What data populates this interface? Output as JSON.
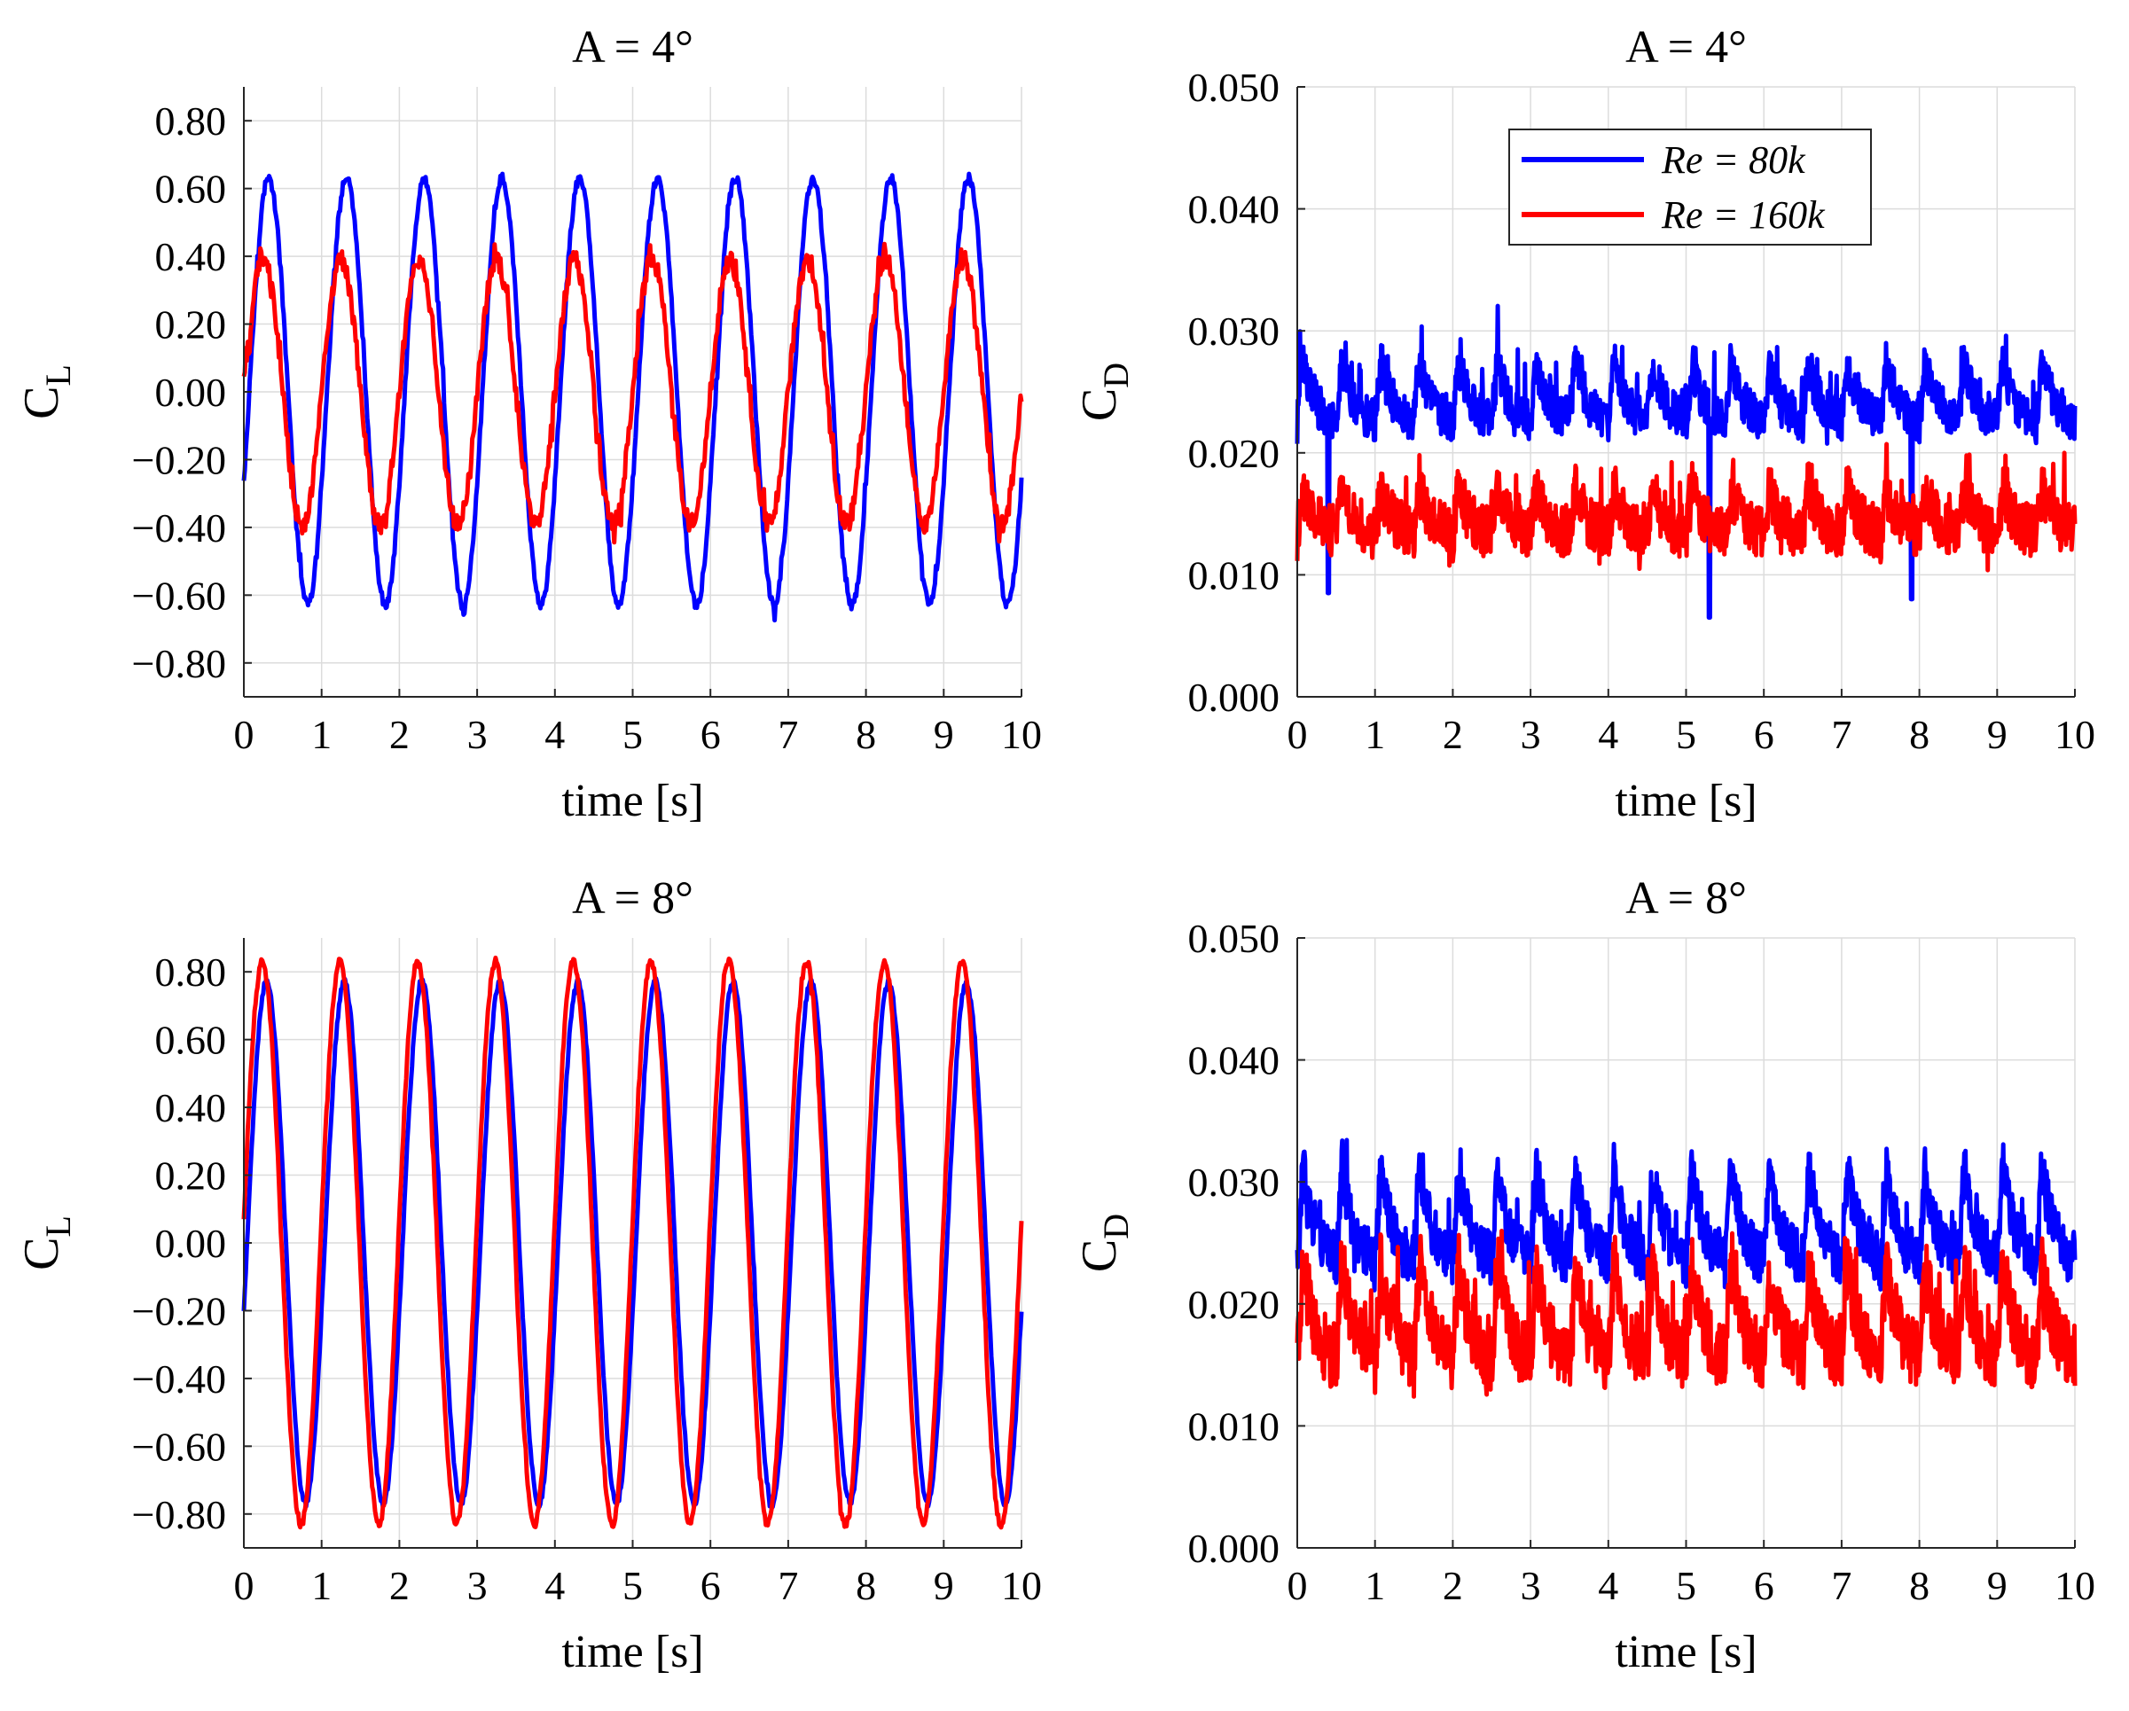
{
  "colors": {
    "series_1": "#0000ff",
    "series_2": "#ff0000",
    "grid": "#dcdcdc",
    "axes": "#262626"
  },
  "legend": {
    "entries": [
      "Re = 80k",
      "Re = 160k"
    ],
    "placement": "top-center of top-right panel"
  },
  "chart_data": [
    {
      "type": "line",
      "panel": "top-left",
      "title": "A = 4°",
      "xlabel": "time [s]",
      "ylabel_main": "C",
      "ylabel_sub": "L",
      "xlim": [
        0,
        10
      ],
      "ylim": [
        -0.9,
        0.9
      ],
      "xticks": [
        0,
        1,
        2,
        3,
        4,
        5,
        6,
        7,
        8,
        9,
        10
      ],
      "xtick_labels": [
        "0",
        "1",
        "2",
        "3",
        "4",
        "5",
        "6",
        "7",
        "8",
        "9",
        "10"
      ],
      "yticks": [
        -0.8,
        -0.6,
        -0.4,
        -0.2,
        0,
        0.2,
        0.4,
        0.6,
        0.8
      ],
      "ytick_labels": [
        "−0.80",
        "−0.60",
        "−0.40",
        "−0.20",
        "0.00",
        "0.20",
        "0.40",
        "0.60",
        "0.80"
      ],
      "grid": true,
      "series": [
        {
          "name": "Re = 80k",
          "model": "sine",
          "frequency_hz": 1,
          "mean": 0,
          "amplitude": 0.63,
          "phase_deg": -25,
          "noise": 0.015,
          "samples": 800
        },
        {
          "name": "Re = 160k",
          "model": "sine",
          "frequency_hz": 1,
          "mean": 0,
          "amplitude": 0.39,
          "phase_deg": 0,
          "noise": 0.03,
          "samples": 800
        }
      ]
    },
    {
      "type": "line",
      "panel": "top-right",
      "title": "A = 4°",
      "xlabel": "time [s]",
      "ylabel_main": "C",
      "ylabel_sub": "D",
      "xlim": [
        0,
        10
      ],
      "ylim": [
        0,
        0.05
      ],
      "xticks": [
        0,
        1,
        2,
        3,
        4,
        5,
        6,
        7,
        8,
        9,
        10
      ],
      "xtick_labels": [
        "0",
        "1",
        "2",
        "3",
        "4",
        "5",
        "6",
        "7",
        "8",
        "9",
        "10"
      ],
      "yticks": [
        0,
        0.01,
        0.02,
        0.03,
        0.04,
        0.05
      ],
      "ytick_labels": [
        "0.000",
        "0.010",
        "0.020",
        "0.030",
        "0.040",
        "0.050"
      ],
      "grid": true,
      "series": [
        {
          "name": "Re = 80k",
          "model": "spiky",
          "frequency_hz": 2,
          "mean": 0.0245,
          "amplitude": 0.0045,
          "noise": 0.0018,
          "samples": 1400,
          "dips": [
            [
              0.4,
              0.0085
            ],
            [
              5.3,
              0.0065
            ],
            [
              7.9,
              0.008
            ]
          ]
        },
        {
          "name": "Re = 160k",
          "model": "spiky",
          "frequency_hz": 2,
          "mean": 0.0148,
          "amplitude": 0.0035,
          "noise": 0.0022,
          "samples": 1400,
          "dips": []
        }
      ]
    },
    {
      "type": "line",
      "panel": "bottom-left",
      "title": "A = 8°",
      "xlabel": "time [s]",
      "ylabel_main": "C",
      "ylabel_sub": "L",
      "xlim": [
        0,
        10
      ],
      "ylim": [
        -0.9,
        0.9
      ],
      "xticks": [
        0,
        1,
        2,
        3,
        4,
        5,
        6,
        7,
        8,
        9,
        10
      ],
      "xtick_labels": [
        "0",
        "1",
        "2",
        "3",
        "4",
        "5",
        "6",
        "7",
        "8",
        "9",
        "10"
      ],
      "yticks": [
        -0.8,
        -0.6,
        -0.4,
        -0.2,
        0,
        0.2,
        0.4,
        0.6,
        0.8
      ],
      "ytick_labels": [
        "−0.80",
        "−0.60",
        "−0.40",
        "−0.20",
        "0.00",
        "0.20",
        "0.40",
        "0.60",
        "0.80"
      ],
      "grid": true,
      "series": [
        {
          "name": "Re = 80k",
          "model": "sine",
          "frequency_hz": 1,
          "mean": 0,
          "amplitude": 0.77,
          "phase_deg": -15,
          "noise": 0.01,
          "samples": 800
        },
        {
          "name": "Re = 160k",
          "model": "sine",
          "frequency_hz": 1,
          "mean": 0,
          "amplitude": 0.83,
          "phase_deg": 5,
          "noise": 0.012,
          "samples": 800
        }
      ]
    },
    {
      "type": "line",
      "panel": "bottom-right",
      "title": "A = 8°",
      "xlabel": "time [s]",
      "ylabel_main": "C",
      "ylabel_sub": "D",
      "xlim": [
        0,
        10
      ],
      "ylim": [
        0,
        0.05
      ],
      "xticks": [
        0,
        1,
        2,
        3,
        4,
        5,
        6,
        7,
        8,
        9,
        10
      ],
      "xtick_labels": [
        "0",
        "1",
        "2",
        "3",
        "4",
        "5",
        "6",
        "7",
        "8",
        "9",
        "10"
      ],
      "yticks": [
        0,
        0.01,
        0.02,
        0.03,
        0.04,
        0.05
      ],
      "ytick_labels": [
        "0.000",
        "0.010",
        "0.020",
        "0.030",
        "0.040",
        "0.050"
      ],
      "grid": true,
      "series": [
        {
          "name": "Re = 80k",
          "model": "spiky",
          "frequency_hz": 2,
          "mean": 0.0265,
          "amplitude": 0.0075,
          "noise": 0.0022,
          "samples": 1400,
          "dips": []
        },
        {
          "name": "Re = 160k",
          "model": "spiky",
          "frequency_hz": 2,
          "mean": 0.0185,
          "amplitude": 0.0075,
          "noise": 0.0028,
          "samples": 1400,
          "dips": []
        }
      ]
    }
  ]
}
